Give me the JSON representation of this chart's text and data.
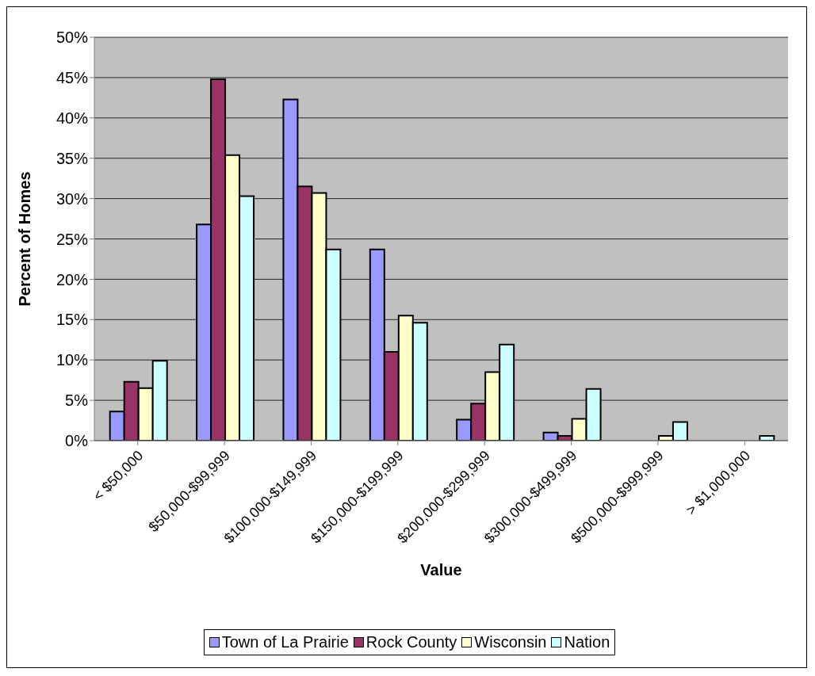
{
  "chart_data": {
    "type": "bar",
    "xlabel": "Value",
    "ylabel": "Percent of Homes",
    "categories": [
      "< $50,000",
      "$50,000-$99,999",
      "$100,000-$149,999",
      "$150,000-$199,999",
      "$200,000-$299,999",
      "$300,000-$499,999",
      "$500,000-$999,999",
      "> $1,000,000"
    ],
    "series": [
      {
        "name": "Town of La Prairie",
        "color": "#9999ff",
        "values": [
          3.6,
          26.8,
          42.3,
          23.7,
          2.6,
          1.0,
          0,
          0
        ]
      },
      {
        "name": "Rock County",
        "color": "#993366",
        "values": [
          7.3,
          44.8,
          31.5,
          11.0,
          4.6,
          0.6,
          null,
          null
        ]
      },
      {
        "name": "Wisconsin",
        "color": "#ffffcc",
        "values": [
          6.5,
          35.4,
          30.7,
          15.5,
          8.5,
          2.7,
          0.6,
          null
        ]
      },
      {
        "name": "Nation",
        "color": "#ccffff",
        "values": [
          9.9,
          30.3,
          23.7,
          14.6,
          11.9,
          6.4,
          2.3,
          0.6
        ]
      }
    ],
    "ylim": [
      0,
      50
    ],
    "yticks": [
      {
        "value": 0,
        "label": "0%"
      },
      {
        "value": 5,
        "label": "5%"
      },
      {
        "value": 10,
        "label": "10%"
      },
      {
        "value": 15,
        "label": "15%"
      },
      {
        "value": 20,
        "label": "20%"
      },
      {
        "value": 25,
        "label": "25%"
      },
      {
        "value": 30,
        "label": "30%"
      },
      {
        "value": 35,
        "label": "35%"
      },
      {
        "value": 40,
        "label": "40%"
      },
      {
        "value": 45,
        "label": "45%"
      },
      {
        "value": 50,
        "label": "50%"
      }
    ],
    "grid": "y",
    "legend": "bottom"
  }
}
